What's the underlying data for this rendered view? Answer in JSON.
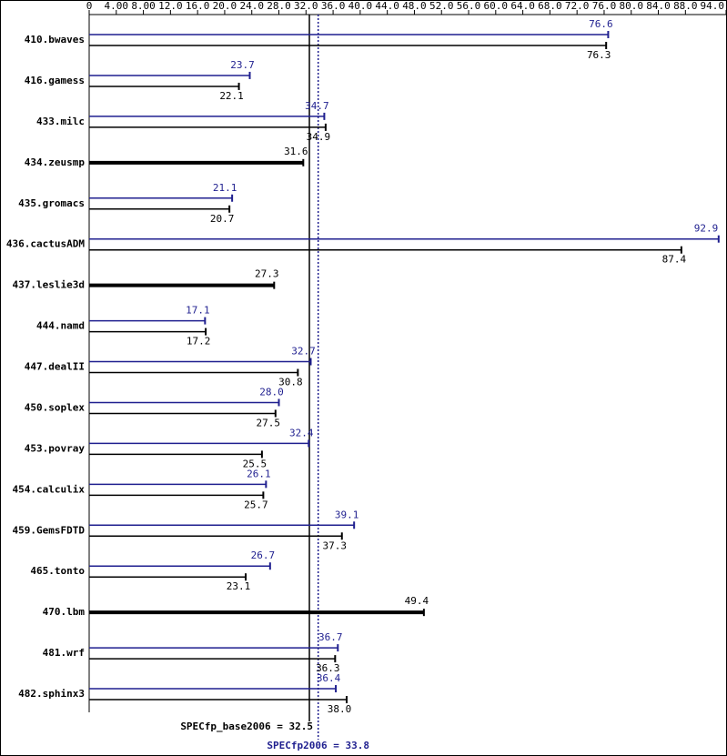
{
  "chart_data": {
    "type": "bar",
    "orientation": "horizontal",
    "categories": [
      "410.bwaves",
      "416.gamess",
      "433.milc",
      "434.zeusmp",
      "435.gromacs",
      "436.cactusADM",
      "437.leslie3d",
      "444.namd",
      "447.dealII",
      "450.soplex",
      "453.povray",
      "454.calculix",
      "459.GemsFDTD",
      "465.tonto",
      "470.lbm",
      "481.wrf",
      "482.sphinx3"
    ],
    "series": [
      {
        "name": "SPECfp2006",
        "color": "#1f1f8f",
        "values": [
          76.6,
          23.7,
          34.7,
          null,
          21.1,
          92.9,
          null,
          17.1,
          32.7,
          28.0,
          32.4,
          26.1,
          39.1,
          26.7,
          null,
          36.7,
          36.4
        ],
        "value_labels": [
          "76.6",
          "23.7",
          "34.7",
          null,
          "21.1",
          "92.9",
          null,
          "17.1",
          "32.7",
          "28.0",
          "32.4",
          "26.1",
          "39.1",
          "26.7",
          null,
          "36.7",
          "36.4"
        ]
      },
      {
        "name": "SPECfp_base2006",
        "color": "#000000",
        "values": [
          76.3,
          22.1,
          34.9,
          31.6,
          20.7,
          87.4,
          27.3,
          17.2,
          30.8,
          27.5,
          25.5,
          25.7,
          37.3,
          23.1,
          49.4,
          36.3,
          38.0
        ],
        "value_labels": [
          "76.3",
          "22.1",
          "34.9",
          "31.6",
          "20.7",
          "87.4",
          "27.3",
          "17.2",
          "30.8",
          "27.5",
          "25.5",
          "25.7",
          "37.3",
          "23.1",
          "49.4",
          "36.3",
          "38.0"
        ]
      }
    ],
    "reference_lines": [
      {
        "label": "SPECfp_base2006 = 32.5",
        "value": 32.5,
        "color": "#000000",
        "style": "solid"
      },
      {
        "label": "SPECfp2006 = 33.8",
        "value": 33.8,
        "color": "#1f1f8f",
        "style": "dotted"
      }
    ],
    "xlim": [
      0,
      94
    ],
    "xticks": [
      0,
      {
        "value": 4,
        "label": "4.00"
      },
      {
        "value": 8,
        "label": "8.00"
      },
      {
        "value": 12,
        "label": "12.0"
      },
      {
        "value": 16,
        "label": "16.0"
      },
      {
        "value": 20,
        "label": "20.0"
      },
      {
        "value": 24,
        "label": "24.0"
      },
      {
        "value": 28,
        "label": "28.0"
      },
      {
        "value": 32,
        "label": "32.0"
      },
      {
        "value": 36,
        "label": "36.0"
      },
      {
        "value": 40,
        "label": "40.0"
      },
      {
        "value": 44,
        "label": "44.0"
      },
      {
        "value": 48,
        "label": "48.0"
      },
      {
        "value": 52,
        "label": "52.0"
      },
      {
        "value": 56,
        "label": "56.0"
      },
      {
        "value": 60,
        "label": "60.0"
      },
      {
        "value": 64,
        "label": "64.0"
      },
      {
        "value": 68,
        "label": "68.0"
      },
      {
        "value": 72,
        "label": "72.0"
      },
      {
        "value": 76,
        "label": "76.0"
      },
      {
        "value": 80,
        "label": "80.0"
      },
      {
        "value": 84,
        "label": "84.0"
      },
      {
        "value": 88,
        "label": "88.0"
      },
      {
        "value": 94,
        "label": "94.0"
      }
    ]
  }
}
